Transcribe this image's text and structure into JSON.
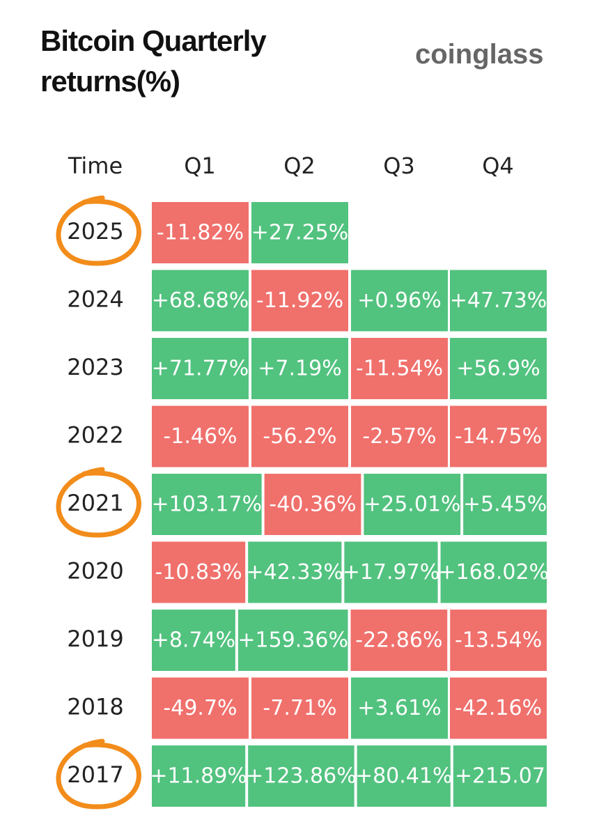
{
  "header": {
    "title_line1": "Bitcoin Quarterly",
    "title_line2": "returns(%)",
    "brand": "coinglass"
  },
  "colors": {
    "positive": "#52c27f",
    "negative": "#f0706c",
    "circle": "#f28c1a"
  },
  "chart_data": {
    "type": "heatmap",
    "row_header": "Time",
    "columns": [
      "Q1",
      "Q2",
      "Q3",
      "Q4"
    ],
    "rows": [
      {
        "year": "2025",
        "circled": true,
        "values": [
          "-11.82%",
          "+27.25%",
          null,
          null
        ]
      },
      {
        "year": "2024",
        "circled": false,
        "values": [
          "+68.68%",
          "-11.92%",
          "+0.96%",
          "+47.73%"
        ]
      },
      {
        "year": "2023",
        "circled": false,
        "values": [
          "+71.77%",
          "+7.19%",
          "-11.54%",
          "+56.9%"
        ]
      },
      {
        "year": "2022",
        "circled": false,
        "values": [
          "-1.46%",
          "-56.2%",
          "-2.57%",
          "-14.75%"
        ]
      },
      {
        "year": "2021",
        "circled": true,
        "values": [
          "+103.17%",
          "-40.36%",
          "+25.01%",
          "+5.45%"
        ]
      },
      {
        "year": "2020",
        "circled": false,
        "values": [
          "-10.83%",
          "+42.33%",
          "+17.97%",
          "+168.02%"
        ]
      },
      {
        "year": "2019",
        "circled": false,
        "values": [
          "+8.74%",
          "+159.36%",
          "-22.86%",
          "-13.54%"
        ]
      },
      {
        "year": "2018",
        "circled": false,
        "values": [
          "-49.7%",
          "-7.71%",
          "+3.61%",
          "-42.16%"
        ]
      },
      {
        "year": "2017",
        "circled": true,
        "values": [
          "+11.89%",
          "+123.86%",
          "+80.41%",
          "+215.07"
        ]
      }
    ]
  }
}
